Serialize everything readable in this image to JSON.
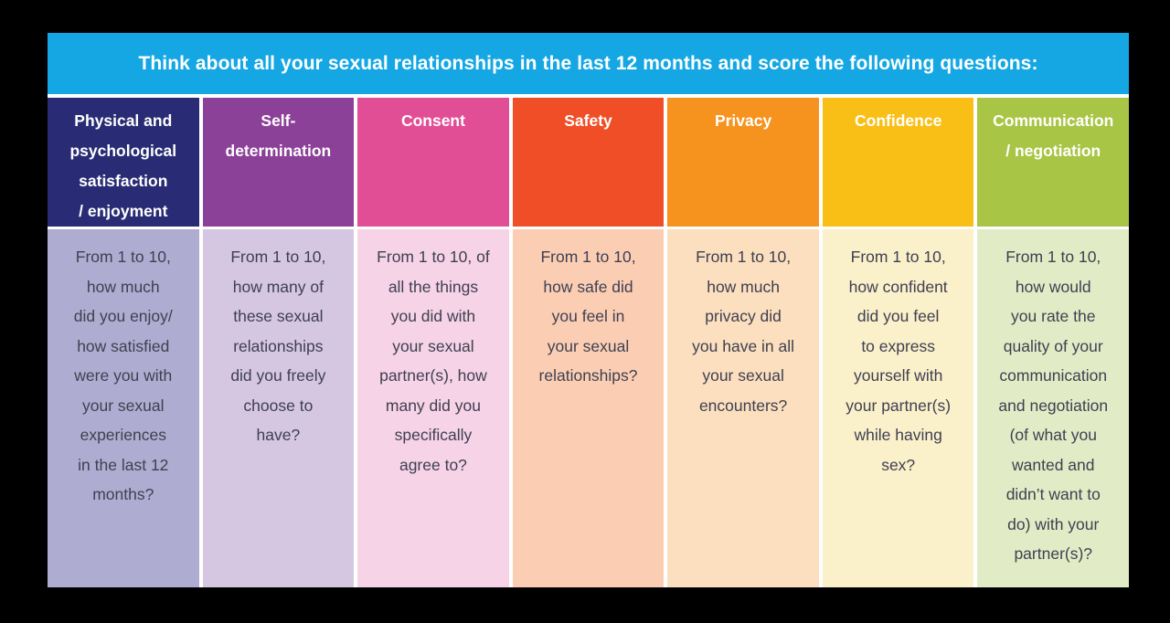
{
  "banner": {
    "text": "Think about all your sexual relationships in the last 12 months and score the following questions:",
    "bg": "#15a7e3",
    "text_color": "#ffffff"
  },
  "columns": [
    {
      "id": "satisfaction",
      "header": "Physical and\npsychological\nsatisfaction\n/ enjoyment",
      "question": "From 1 to 10,\nhow much\ndid you enjoy/\nhow satisfied\nwere  you with\nyour sexual\nexperiences\nin the last 12\nmonths?",
      "header_bg": "#292c74",
      "body_bg": "#aeadd1"
    },
    {
      "id": "self-determination",
      "header": "Self-\ndetermination",
      "question": "From 1 to 10,\nhow many of\nthese sexual\nrelationships\ndid you freely\nchoose to\nhave?",
      "header_bg": "#8c4198",
      "body_bg": "#d5c6e2"
    },
    {
      "id": "consent",
      "header": "Consent",
      "question": "From 1 to 10, of\nall the things\nyou did with\nyour sexual\npartner(s), how\nmany did you\nspecifically\nagree to?",
      "header_bg": "#e24e96",
      "body_bg": "#f6d3e7"
    },
    {
      "id": "safety",
      "header": "Safety",
      "question": "From 1 to 10,\nhow safe did\nyou feel in\nyour sexual\nrelationships?",
      "header_bg": "#f04e26",
      "body_bg": "#fbceb4"
    },
    {
      "id": "privacy",
      "header": "Privacy",
      "question": "From 1 to 10,\nhow much\nprivacy did\nyou have in all\nyour sexual\nencounters?",
      "header_bg": "#f6921e",
      "body_bg": "#fcdfbe"
    },
    {
      "id": "confidence",
      "header": "Confidence",
      "question": "From 1 to 10,\nhow confident\ndid you feel\nto express\nyourself with\nyour partner(s)\nwhile having\nsex?",
      "header_bg": "#f9bf17",
      "body_bg": "#faf0ca"
    },
    {
      "id": "communication",
      "header": "Communication\n/ negotiation",
      "question": "From 1 to 10,\nhow would\nyou rate the\nquality of your\ncommunication\nand negotiation\n(of what you\nwanted and\ndidn’t want to\ndo) with your\npartner(s)?",
      "header_bg": "#a8c545",
      "body_bg": "#e1ecc6"
    }
  ]
}
